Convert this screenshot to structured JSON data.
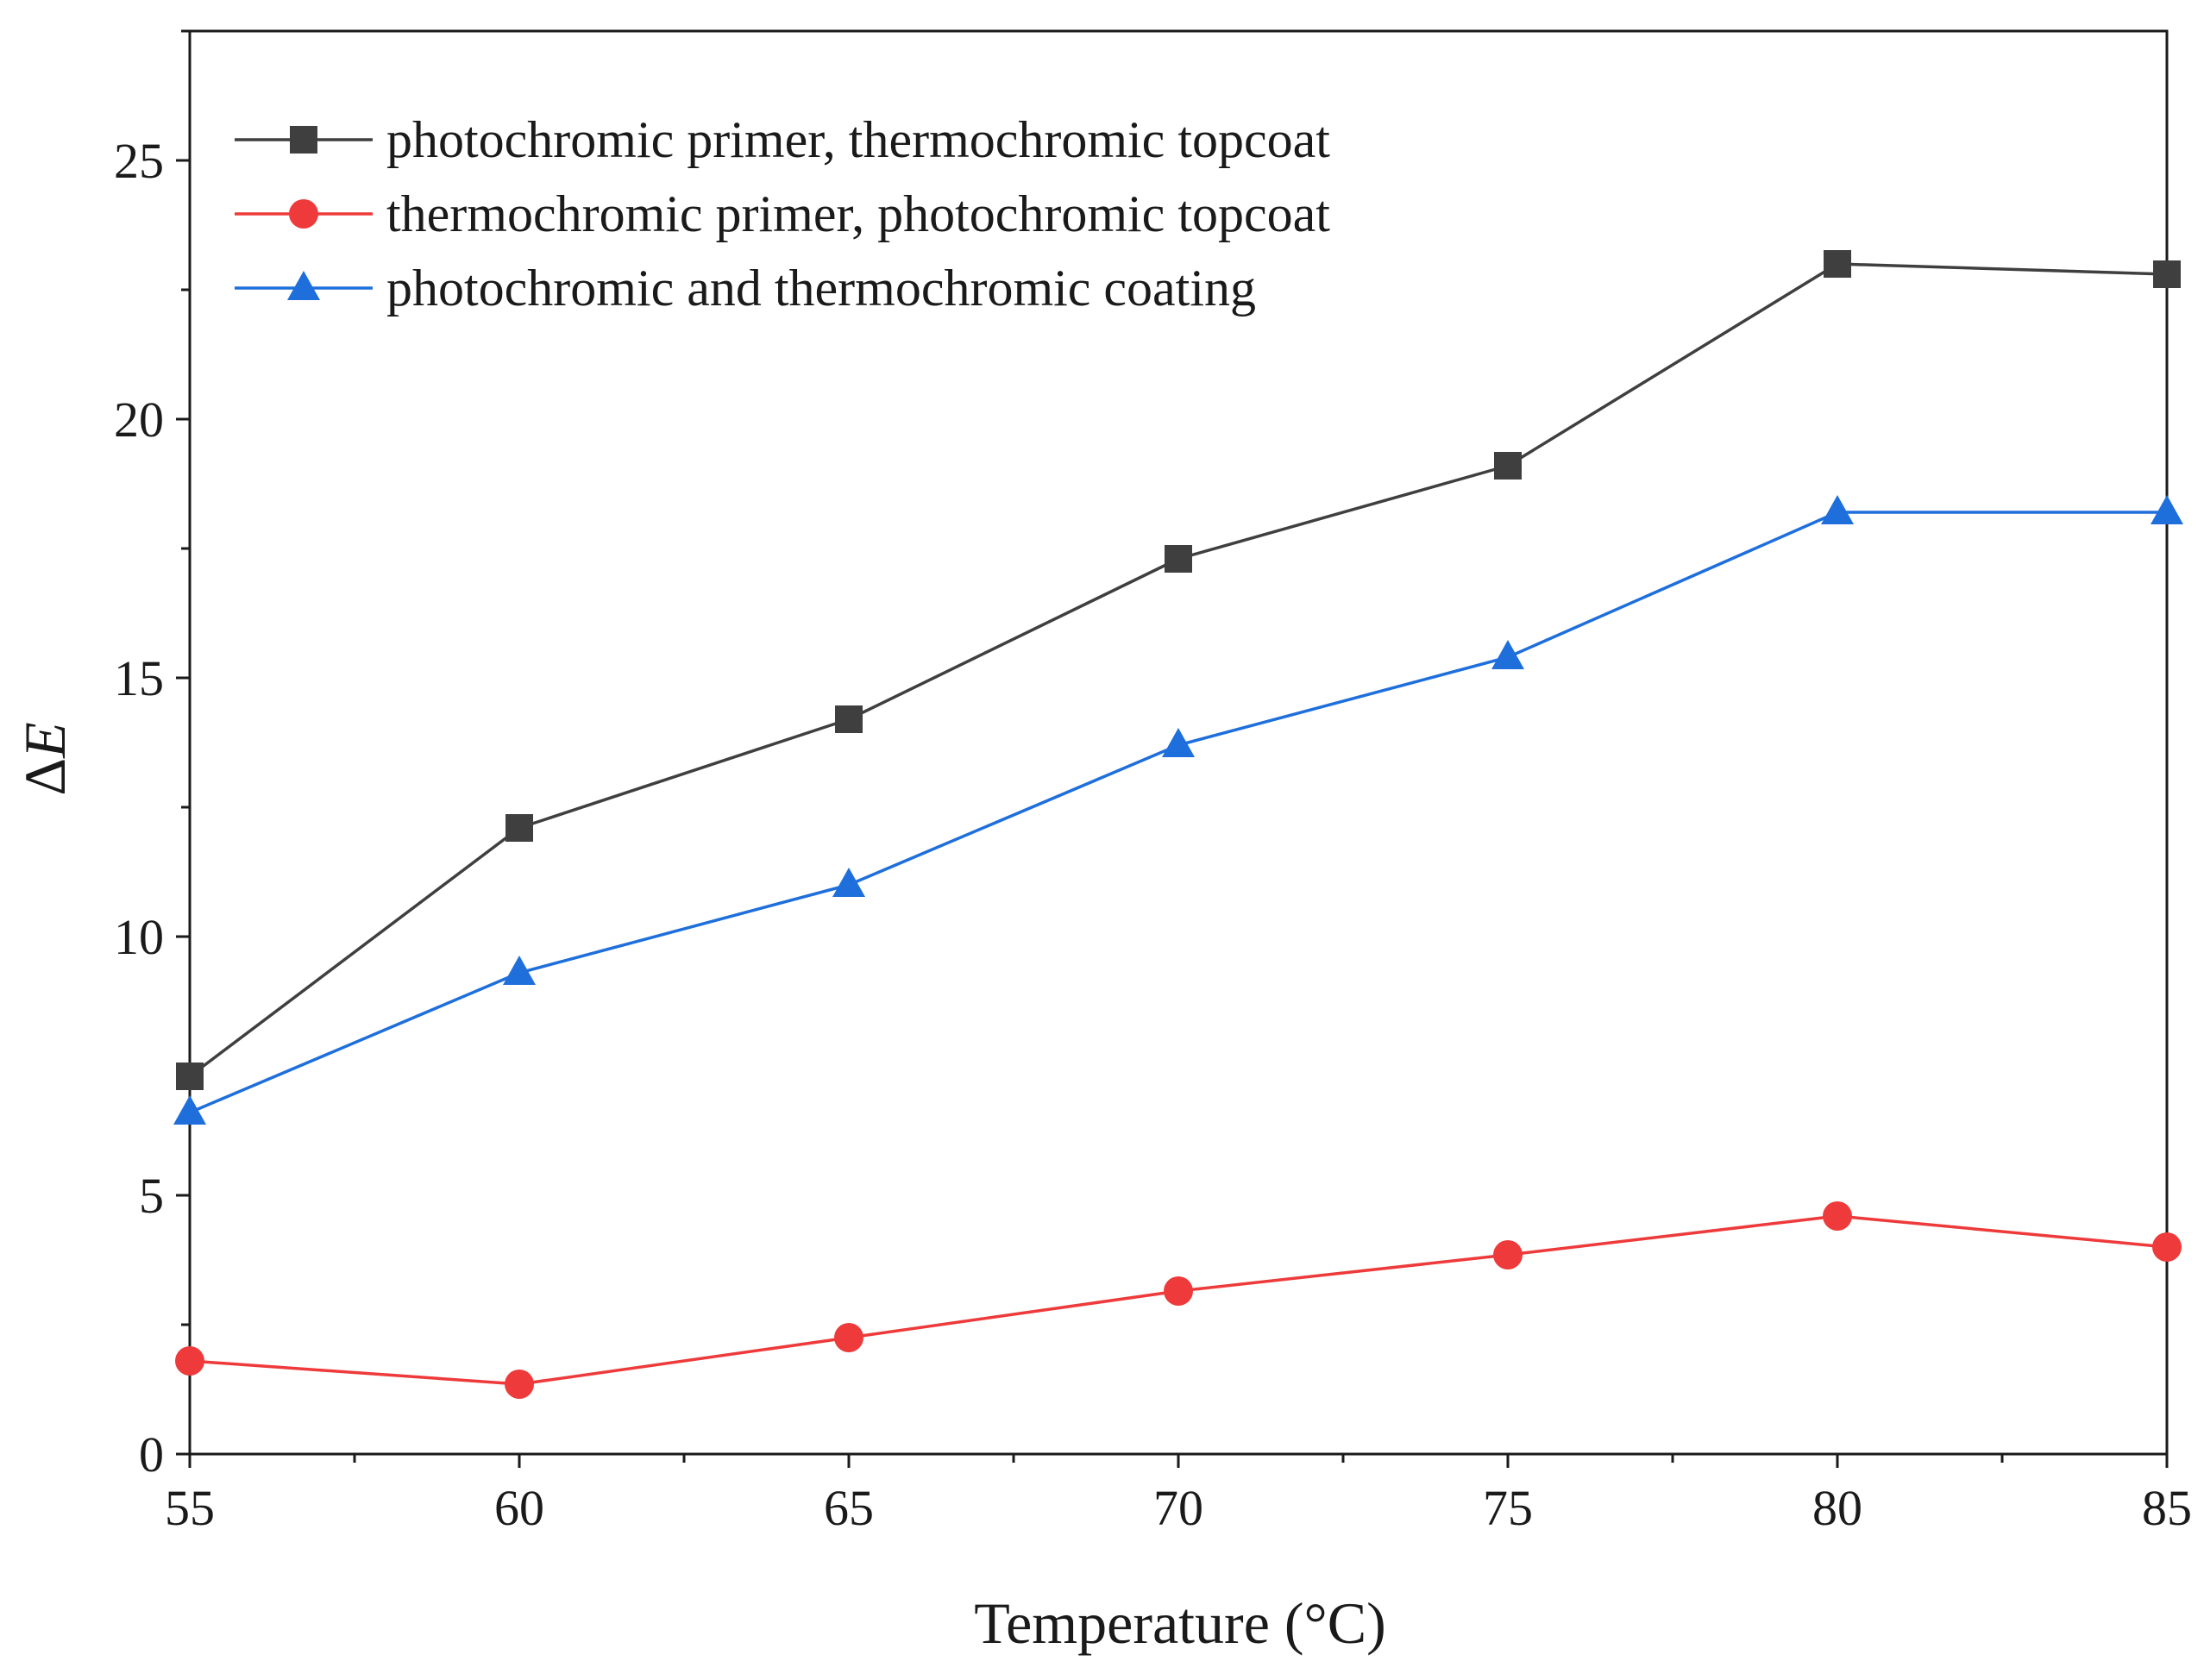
{
  "chart_data": {
    "type": "line",
    "title": "",
    "xlabel": "Temperature (°C)",
    "ylabel_symbol": "Δ",
    "ylabel_var": "E",
    "xlim": [
      55,
      85
    ],
    "ylim": [
      0,
      27.5
    ],
    "x_ticks": [
      55,
      60,
      65,
      70,
      75,
      80,
      85
    ],
    "y_ticks": [
      0,
      5,
      10,
      15,
      20,
      25
    ],
    "grid": false,
    "legend_position": "top-left",
    "x": [
      55,
      60,
      65,
      70,
      75,
      80,
      85
    ],
    "series": [
      {
        "name": "photochromic primer, thermochromic topcoat",
        "color": "#3f3f3f",
        "marker": "square",
        "values": [
          7.3,
          12.1,
          14.2,
          17.3,
          19.1,
          23.0,
          22.8
        ]
      },
      {
        "name": "thermochromic primer, photochromic topcoat",
        "color": "#ee3a3a",
        "marker": "circle",
        "values": [
          1.8,
          1.35,
          2.25,
          3.15,
          3.85,
          4.6,
          4.0
        ]
      },
      {
        "name": "photochromic and thermochromic coating",
        "color": "#1e6fdc",
        "marker": "triangle",
        "values": [
          6.6,
          9.3,
          11.0,
          13.7,
          15.4,
          18.2,
          18.2
        ]
      }
    ]
  }
}
